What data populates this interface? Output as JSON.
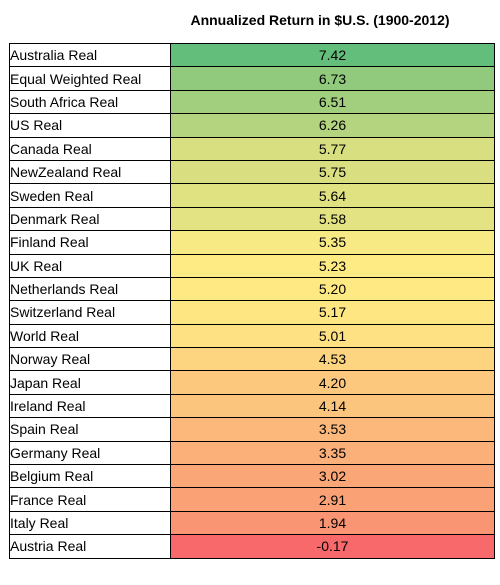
{
  "title": "Annualized Return in $U.S. (1900-2012)",
  "rows": [
    {
      "name": "Australia Real",
      "value": "7.42",
      "color": "#63BE7B"
    },
    {
      "name": "Equal Weighted Real",
      "value": "6.73",
      "color": "#91CA7D"
    },
    {
      "name": "South Africa Real",
      "value": "6.51",
      "color": "#A2CF7E"
    },
    {
      "name": "US Real",
      "value": "6.26",
      "color": "#B4D47F"
    },
    {
      "name": "Canada Real",
      "value": "5.77",
      "color": "#D7DF81"
    },
    {
      "name": "NewZealand Real",
      "value": "5.75",
      "color": "#D9DF81"
    },
    {
      "name": "Sweden Real",
      "value": "5.64",
      "color": "#E0E282"
    },
    {
      "name": "Denmark Real",
      "value": "5.58",
      "color": "#E4E383"
    },
    {
      "name": "Finland Real",
      "value": "5.35",
      "color": "#F7E984"
    },
    {
      "name": "UK Real",
      "value": "5.23",
      "color": "#FEEB84"
    },
    {
      "name": "Netherlands Real",
      "value": "5.20",
      "color": "#FEE983"
    },
    {
      "name": "Switzerland Real",
      "value": "5.17",
      "color": "#FEE683"
    },
    {
      "name": "World Real",
      "value": "5.01",
      "color": "#FEE182"
    },
    {
      "name": "Norway Real",
      "value": "4.53",
      "color": "#FDD480"
    },
    {
      "name": "Japan Real",
      "value": "4.20",
      "color": "#FCC87D"
    },
    {
      "name": "Ireland Real",
      "value": "4.14",
      "color": "#FCC57D"
    },
    {
      "name": "Spain Real",
      "value": "3.53",
      "color": "#FBB87A"
    },
    {
      "name": "Germany Real",
      "value": "3.35",
      "color": "#FBB079"
    },
    {
      "name": "Belgium Real",
      "value": "3.02",
      "color": "#FAA677"
    },
    {
      "name": "France Real",
      "value": "2.91",
      "color": "#FAA176"
    },
    {
      "name": "Italy Real",
      "value": "1.94",
      "color": "#FA9573"
    },
    {
      "name": "Austria Real",
      "value": "-0.17",
      "color": "#F8696B"
    }
  ]
}
